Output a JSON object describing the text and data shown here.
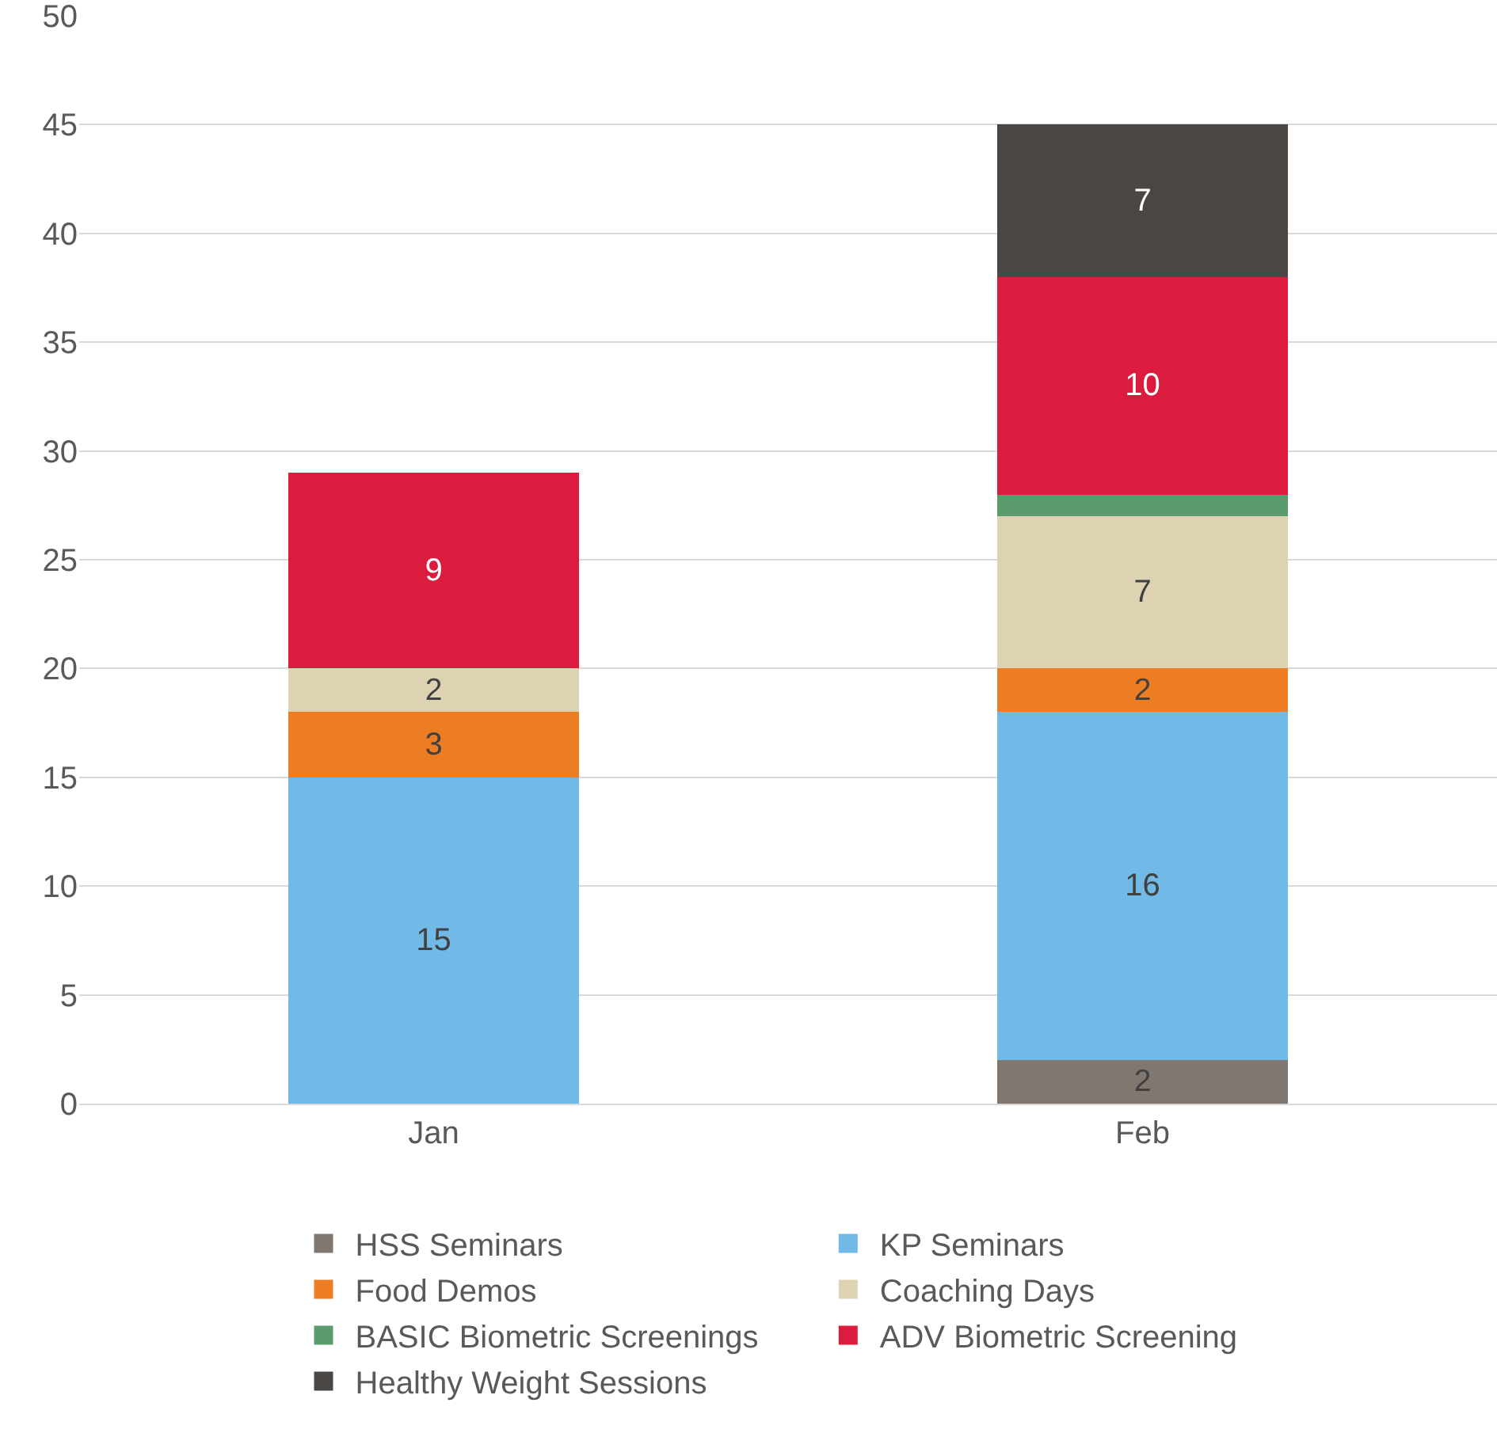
{
  "chart_data": {
    "type": "bar",
    "stacked": true,
    "categories": [
      "Jan",
      "Feb"
    ],
    "series": [
      {
        "name": "HSS Seminars",
        "color": "#7f7770",
        "values": [
          null,
          2
        ],
        "value_labels": [
          null,
          "2"
        ]
      },
      {
        "name": "KP Seminars",
        "color": "#71b9e6",
        "values": [
          15,
          16
        ],
        "value_labels": [
          "15",
          "16"
        ]
      },
      {
        "name": "Food Demos",
        "color": "#ed7d22",
        "values": [
          3,
          2
        ],
        "value_labels": [
          "3",
          "2"
        ]
      },
      {
        "name": "Coaching Days",
        "color": "#ddd3b2",
        "values": [
          2,
          7
        ],
        "value_labels": [
          "2",
          "7"
        ]
      },
      {
        "name": "BASIC Biometric Screenings",
        "color": "#5a9b6e",
        "values": [
          null,
          1
        ],
        "value_labels": [
          null,
          null
        ]
      },
      {
        "name": "ADV Biometric Screening",
        "color": "#dc1c3e",
        "values": [
          9,
          10
        ],
        "value_labels": [
          "9",
          "10"
        ]
      },
      {
        "name": "Healthy Weight Sessions",
        "color": "#4a4643",
        "values": [
          null,
          7
        ],
        "value_labels": [
          null,
          "7"
        ]
      }
    ],
    "ylim": [
      0,
      50
    ],
    "yticks": [
      0,
      5,
      10,
      15,
      20,
      25,
      30,
      35,
      40,
      45,
      50
    ],
    "grid": "y",
    "legend": "bottom"
  }
}
